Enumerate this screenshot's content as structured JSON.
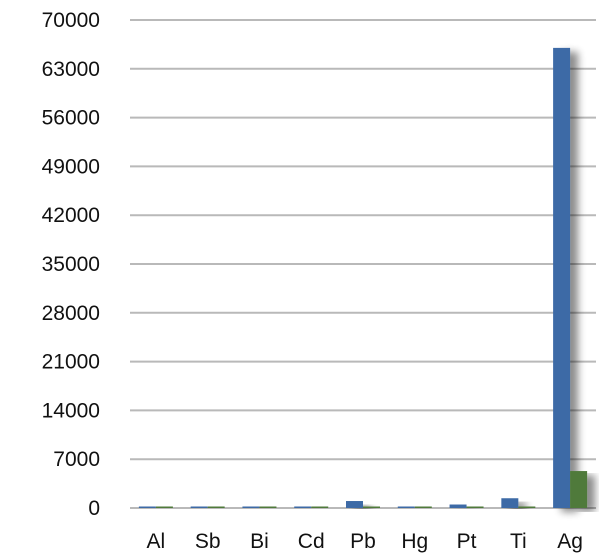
{
  "chart_data": {
    "type": "bar",
    "categories": [
      "Al",
      "Sb",
      "Bi",
      "Cd",
      "Pb",
      "Hg",
      "Pt",
      "Ti",
      "Ag"
    ],
    "series": [
      {
        "color": "#3d6aa6",
        "values": [
          200,
          150,
          180,
          160,
          1000,
          120,
          500,
          1400,
          66000
        ]
      },
      {
        "color": "#4f7a3a",
        "values": [
          60,
          40,
          80,
          50,
          120,
          30,
          100,
          180,
          5300
        ]
      }
    ],
    "y_ticks": [
      "0",
      "7000",
      "14000",
      "21000",
      "28000",
      "35000",
      "42000",
      "49000",
      "56000",
      "63000",
      "70000"
    ],
    "ylim": [
      0,
      70000
    ],
    "title": "",
    "xlabel": "",
    "ylabel": "",
    "grid": true,
    "legend": "none"
  }
}
